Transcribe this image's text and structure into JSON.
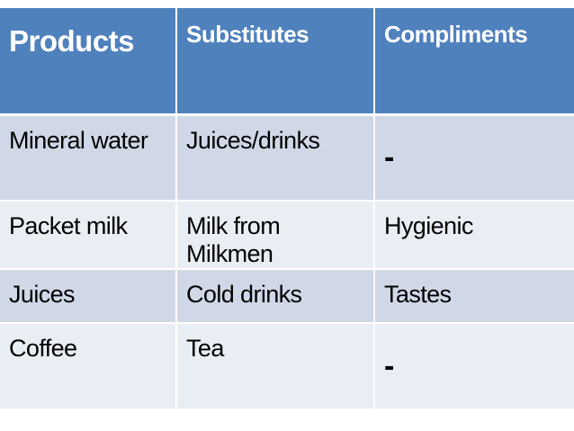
{
  "table": {
    "headers": [
      "Products",
      "Substitutes",
      "Compliments"
    ],
    "rows": [
      [
        "Mineral water",
        "Juices/drinks",
        "-"
      ],
      [
        "Packet milk",
        "Milk from Milkmen",
        "Hygienic"
      ],
      [
        "Juices",
        "Cold drinks",
        "Tastes"
      ],
      [
        "Coffee",
        "Tea",
        "-"
      ]
    ]
  },
  "colors": {
    "header_bg": "#4f81bd",
    "row_band_dark": "#d0d8e8",
    "row_band_light": "#e9edf4"
  }
}
